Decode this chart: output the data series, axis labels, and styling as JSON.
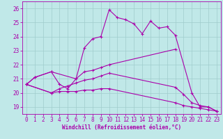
{
  "xlabel": "Windchill (Refroidissement éolien,°C)",
  "background_color": "#c0e8e8",
  "grid_color": "#a0cccc",
  "line_color": "#aa00aa",
  "ylim": [
    18.5,
    26.5
  ],
  "xlim": [
    -0.5,
    23.5
  ],
  "yticks": [
    19,
    20,
    21,
    22,
    23,
    24,
    25,
    26
  ],
  "xticks": [
    0,
    1,
    2,
    3,
    4,
    5,
    6,
    7,
    8,
    9,
    10,
    11,
    12,
    13,
    14,
    15,
    16,
    17,
    18,
    19,
    20,
    21,
    22,
    23
  ],
  "line1_x": [
    0,
    1,
    3,
    4,
    5,
    6,
    7,
    8,
    9,
    10,
    11,
    12,
    13,
    14,
    15,
    16,
    17,
    18,
    20,
    21,
    22,
    23
  ],
  "line1_y": [
    20.6,
    21.1,
    21.5,
    20.6,
    20.3,
    21.0,
    23.2,
    23.85,
    24.0,
    25.9,
    25.35,
    25.2,
    24.9,
    24.2,
    25.1,
    24.6,
    24.7,
    24.1,
    20.0,
    19.0,
    19.0,
    18.7
  ],
  "line2_x": [
    0,
    1,
    3,
    6,
    7,
    8,
    9,
    10,
    18
  ],
  "line2_y": [
    20.6,
    21.1,
    21.5,
    21.0,
    21.5,
    21.6,
    21.8,
    22.0,
    23.1
  ],
  "line3_x": [
    0,
    3,
    4,
    5,
    6,
    7,
    8,
    9,
    10,
    18,
    19,
    20,
    21,
    22,
    23
  ],
  "line3_y": [
    20.6,
    20.0,
    20.3,
    20.5,
    20.7,
    20.9,
    21.0,
    21.2,
    21.4,
    20.4,
    19.9,
    19.3,
    19.1,
    19.0,
    18.7
  ],
  "line4_x": [
    0,
    3,
    4,
    5,
    6,
    7,
    8,
    9,
    10,
    18,
    19,
    20,
    21,
    22,
    23
  ],
  "line4_y": [
    20.6,
    20.0,
    20.1,
    20.1,
    20.1,
    20.2,
    20.2,
    20.3,
    20.3,
    19.3,
    19.1,
    19.0,
    18.9,
    18.8,
    18.7
  ]
}
